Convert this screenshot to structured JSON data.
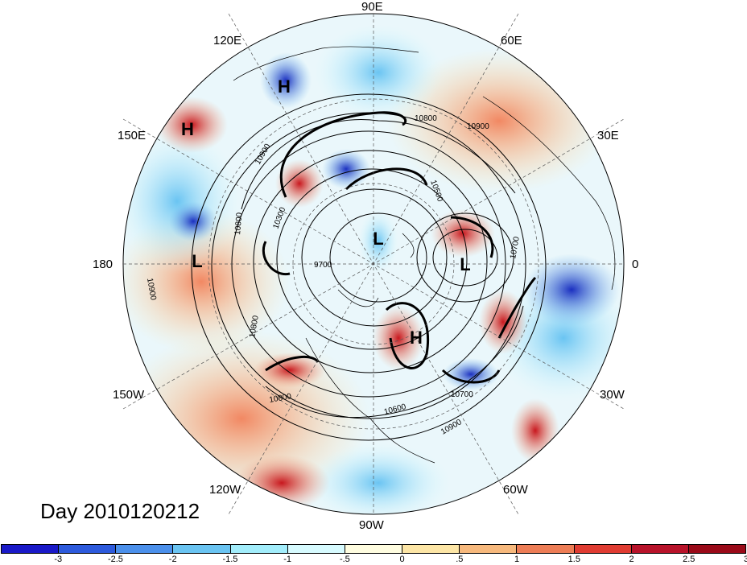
{
  "title": "Day 2010120212",
  "longitude_labels": [
    "90E",
    "60E",
    "120E",
    "30E",
    "150E",
    "180",
    "0",
    "150W",
    "30W",
    "120W",
    "60W",
    "90W"
  ],
  "pressure_centers": [
    "H",
    "H",
    "L",
    "L",
    "L",
    "H"
  ],
  "contour_labels": [
    "10800",
    "10900",
    "10900",
    "10500",
    "10300",
    "10800",
    "9700",
    "10700",
    "10900",
    "10800",
    "10600",
    "10700",
    "10900",
    "10800"
  ],
  "colorbar": {
    "colors": [
      "#1a19c8",
      "#2d5adc",
      "#4b90eb",
      "#6ac4f2",
      "#a2edfb",
      "#d7fbff",
      "#fffde0",
      "#fde6a6",
      "#f7b97d",
      "#ed7d56",
      "#e03c32",
      "#b8132a",
      "#9a0a18"
    ],
    "ticks": [
      "-3",
      "-2.5",
      "-2",
      "-1.5",
      "-1",
      "-.5",
      "0",
      ".5",
      "1",
      "1.5",
      "2",
      "2.5",
      "3"
    ]
  }
}
